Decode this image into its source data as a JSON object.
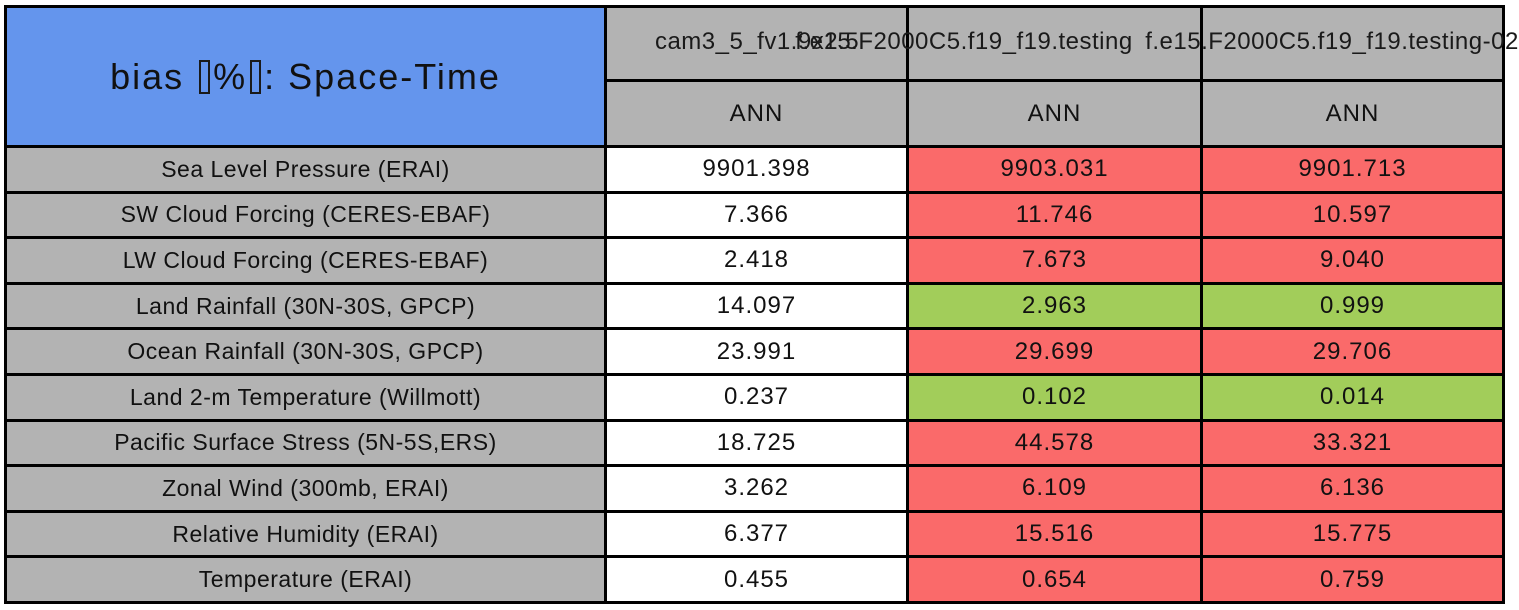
{
  "chart_data": {
    "type": "table",
    "title": "bias [%]: Space-Time",
    "title_parts": {
      "pre": "bias ",
      "pct": "%",
      "post": ": Space-Time"
    },
    "columns": [
      {
        "model": "cam3_5_fv1.9x2.5",
        "season": "ANN"
      },
      {
        "model": "f.e15.F2000C5.f19_f19.testing",
        "season": "ANN"
      },
      {
        "model": "f.e15.F2000C5.f19_f19.testing-02",
        "season": "ANN"
      }
    ],
    "rows": [
      {
        "label": "Sea Level Pressure (ERAI)",
        "values": [
          9901.398,
          9903.031,
          9901.713
        ],
        "display": [
          "9901.398",
          "9903.031",
          "9901.713"
        ],
        "status": [
          "neutral",
          "worse",
          "worse"
        ]
      },
      {
        "label": "SW Cloud Forcing (CERES-EBAF)",
        "values": [
          7.366,
          11.746,
          10.597
        ],
        "display": [
          "7.366",
          "11.746",
          "10.597"
        ],
        "status": [
          "neutral",
          "worse",
          "worse"
        ]
      },
      {
        "label": "LW Cloud Forcing (CERES-EBAF)",
        "values": [
          2.418,
          7.673,
          9.04
        ],
        "display": [
          "2.418",
          "7.673",
          "9.040"
        ],
        "status": [
          "neutral",
          "worse",
          "worse"
        ]
      },
      {
        "label": "Land Rainfall (30N-30S, GPCP)",
        "values": [
          14.097,
          2.963,
          0.999
        ],
        "display": [
          "14.097",
          "2.963",
          "0.999"
        ],
        "status": [
          "neutral",
          "better",
          "better"
        ]
      },
      {
        "label": "Ocean Rainfall (30N-30S, GPCP)",
        "values": [
          23.991,
          29.699,
          29.706
        ],
        "display": [
          "23.991",
          "29.699",
          "29.706"
        ],
        "status": [
          "neutral",
          "worse",
          "worse"
        ]
      },
      {
        "label": "Land 2-m Temperature (Willmott)",
        "values": [
          0.237,
          0.102,
          0.014
        ],
        "display": [
          "0.237",
          "0.102",
          "0.014"
        ],
        "status": [
          "neutral",
          "better",
          "better"
        ]
      },
      {
        "label": "Pacific Surface Stress (5N-5S,ERS)",
        "values": [
          18.725,
          44.578,
          33.321
        ],
        "display": [
          "18.725",
          "44.578",
          "33.321"
        ],
        "status": [
          "neutral",
          "worse",
          "worse"
        ]
      },
      {
        "label": "Zonal Wind (300mb, ERAI)",
        "values": [
          3.262,
          6.109,
          6.136
        ],
        "display": [
          "3.262",
          "6.109",
          "6.136"
        ],
        "status": [
          "neutral",
          "worse",
          "worse"
        ]
      },
      {
        "label": "Relative Humidity (ERAI)",
        "values": [
          6.377,
          15.516,
          15.775
        ],
        "display": [
          "6.377",
          "15.516",
          "15.775"
        ],
        "status": [
          "neutral",
          "worse",
          "worse"
        ]
      },
      {
        "label": "Temperature (ERAI)",
        "values": [
          0.455,
          0.654,
          0.759
        ],
        "display": [
          "0.455",
          "0.654",
          "0.759"
        ],
        "status": [
          "neutral",
          "worse",
          "worse"
        ]
      }
    ],
    "layout_hints": {
      "grid": "on",
      "legend": "none",
      "first_data_column_is_reference": true
    }
  },
  "colors": {
    "title_bg": "#6495ED",
    "header_bg": "#B3B3B3",
    "worse": "#FA6A6A",
    "better": "#A2CD5A",
    "neutral": "#FFFFFF",
    "border": "#000000"
  }
}
